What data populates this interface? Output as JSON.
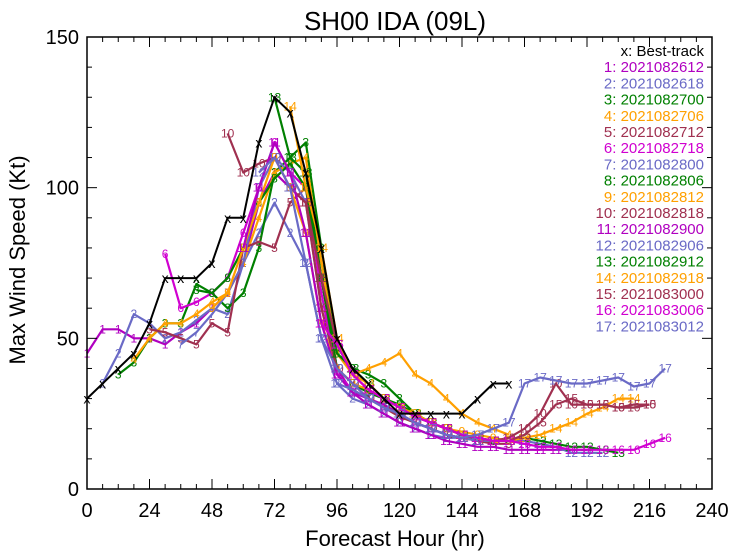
{
  "chart_data": {
    "type": "line",
    "title": "SH00  IDA (09L)",
    "xlabel": "Forecast Hour (hr)",
    "ylabel": "Max Wind Speed (Kt)",
    "xlim": [
      0,
      240
    ],
    "ylim": [
      0,
      150
    ],
    "xticks": [
      0,
      24,
      48,
      72,
      96,
      120,
      144,
      168,
      192,
      216,
      240
    ],
    "yticks": [
      0,
      50,
      100,
      150
    ],
    "legend_position": "top-right",
    "best_track": {
      "label": "x: Best-track",
      "color": "#000000",
      "x": [
        0,
        6,
        12,
        18,
        24,
        30,
        36,
        42,
        48,
        54,
        60,
        66,
        72,
        78,
        84,
        90,
        96,
        102,
        108,
        114,
        120,
        126,
        132,
        138,
        144,
        150,
        156,
        162
      ],
      "y": [
        30,
        35,
        40,
        45,
        55,
        70,
        70,
        70,
        75,
        90,
        90,
        115,
        130,
        125,
        105,
        80,
        50,
        40,
        35,
        30,
        25,
        25,
        25,
        25,
        25,
        30,
        35,
        35
      ]
    },
    "series": [
      {
        "name": "2021082612",
        "marker": "1",
        "color": "#B000C0",
        "x": [
          0,
          6,
          12,
          18,
          24,
          30,
          36,
          42,
          48,
          54,
          60,
          66,
          72,
          78,
          84,
          90,
          96,
          102,
          108,
          114,
          120
        ],
        "y": [
          45,
          53,
          53,
          50,
          50,
          48,
          52,
          55,
          60,
          65,
          75,
          95,
          105,
          100,
          95,
          70,
          40,
          32,
          30,
          28,
          25
        ]
      },
      {
        "name": "2021082618",
        "marker": "2",
        "color": "#6A6AC6",
        "x": [
          6,
          12,
          18,
          24,
          30,
          36,
          42,
          48,
          54,
          60,
          66,
          72,
          78,
          84,
          90,
          96,
          102,
          108,
          114,
          120,
          126,
          132,
          138,
          144
        ],
        "y": [
          35,
          45,
          58,
          55,
          50,
          52,
          56,
          60,
          58,
          75,
          85,
          95,
          85,
          75,
          50,
          35,
          30,
          28,
          25,
          22,
          20,
          18,
          17,
          17
        ]
      },
      {
        "name": "2021082700",
        "marker": "3",
        "color": "#008000",
        "x": [
          12,
          18,
          24,
          30,
          36,
          42,
          48,
          54,
          60,
          66,
          72,
          78,
          84,
          90,
          96,
          102,
          108,
          114,
          120,
          126,
          132,
          138,
          144
        ],
        "y": [
          38,
          42,
          50,
          55,
          55,
          68,
          65,
          60,
          65,
          80,
          105,
          110,
          115,
          80,
          45,
          40,
          38,
          35,
          30,
          25,
          22,
          20,
          18
        ]
      },
      {
        "name": "2021082706",
        "marker": "4",
        "color": "#FFA000",
        "x": [
          18,
          24,
          30,
          36,
          42,
          48,
          54,
          60,
          66,
          72,
          78,
          84,
          90,
          96,
          102,
          108,
          114,
          120,
          126,
          132,
          138,
          144,
          150,
          156,
          162
        ],
        "y": [
          43,
          50,
          55,
          55,
          58,
          62,
          65,
          75,
          90,
          105,
          108,
          110,
          75,
          45,
          38,
          40,
          42,
          45,
          38,
          35,
          30,
          25,
          22,
          20,
          18
        ]
      },
      {
        "name": "2021082712",
        "marker": "5",
        "color": "#A03050",
        "x": [
          24,
          30,
          36,
          42,
          48,
          54,
          60,
          66,
          72,
          78,
          84,
          90,
          96,
          102,
          108,
          114,
          120,
          126,
          132,
          138,
          144,
          150,
          156,
          162
        ],
        "y": [
          53,
          52,
          50,
          48,
          55,
          52,
          80,
          82,
          80,
          95,
          100,
          70,
          40,
          35,
          32,
          30,
          27,
          24,
          22,
          20,
          18,
          16,
          15,
          15
        ]
      },
      {
        "name": "2021082718",
        "marker": "6",
        "color": "#D000D0",
        "x": [
          30,
          36,
          42,
          48,
          54,
          60,
          66,
          72,
          78,
          84,
          90,
          96,
          102,
          108,
          114,
          120,
          126,
          132,
          138,
          144,
          150
        ],
        "y": [
          78,
          60,
          62,
          65,
          70,
          85,
          100,
          115,
          105,
          100,
          65,
          38,
          33,
          30,
          27,
          25,
          22,
          20,
          18,
          17,
          16
        ]
      },
      {
        "name": "2021082800",
        "marker": "7",
        "color": "#6A6AC6",
        "x": [
          36,
          42,
          48,
          54,
          60,
          66,
          72,
          78,
          84,
          90,
          96,
          102,
          108,
          114,
          120,
          126,
          132,
          138,
          144,
          150,
          156
        ],
        "y": [
          48,
          52,
          58,
          65,
          75,
          100,
          110,
          105,
          95,
          60,
          40,
          35,
          32,
          30,
          27,
          24,
          22,
          20,
          18,
          17,
          16
        ]
      },
      {
        "name": "2021082806",
        "marker": "8",
        "color": "#008000",
        "x": [
          42,
          48,
          54,
          60,
          66,
          72,
          78,
          84,
          90,
          96,
          102,
          108,
          114,
          120,
          126,
          132,
          138,
          144,
          150,
          156,
          162
        ],
        "y": [
          66,
          65,
          70,
          80,
          95,
          103,
          108,
          100,
          70,
          40,
          35,
          32,
          30,
          28,
          25,
          22,
          20,
          18,
          17,
          16,
          16
        ]
      },
      {
        "name": "2021082812",
        "marker": "9",
        "color": "#FFA000",
        "x": [
          48,
          54,
          60,
          66,
          72,
          78,
          84,
          90,
          96,
          102,
          108,
          114,
          120,
          126,
          132,
          138,
          144,
          150,
          156,
          162,
          168
        ],
        "y": [
          60,
          65,
          80,
          95,
          110,
          100,
          85,
          55,
          40,
          35,
          33,
          30,
          27,
          25,
          22,
          20,
          19,
          18,
          17,
          16,
          16
        ]
      },
      {
        "name": "2021082818",
        "marker": "10",
        "color": "#A03050",
        "x": [
          54,
          60,
          66,
          72,
          78,
          84,
          90,
          96,
          102,
          108,
          114,
          120,
          126,
          132,
          138,
          144,
          150,
          156,
          162,
          168,
          174,
          180,
          186,
          192,
          198,
          204,
          210,
          216
        ],
        "y": [
          118,
          105,
          108,
          110,
          100,
          95,
          60,
          40,
          35,
          30,
          27,
          24,
          22,
          20,
          18,
          17,
          16,
          16,
          17,
          20,
          25,
          35,
          28,
          28,
          28,
          27,
          27,
          28
        ]
      },
      {
        "name": "2021082900",
        "marker": "11",
        "color": "#B000C0",
        "x": [
          60,
          66,
          72,
          78,
          84,
          90,
          96,
          102,
          108,
          114,
          120,
          126,
          132,
          138,
          144,
          150,
          156,
          162,
          168,
          174,
          180,
          186,
          192
        ],
        "y": [
          80,
          100,
          115,
          105,
          85,
          55,
          38,
          32,
          28,
          25,
          22,
          20,
          18,
          16,
          15,
          14,
          14,
          13,
          13,
          13,
          13,
          13,
          13
        ]
      },
      {
        "name": "2021082906",
        "marker": "12",
        "color": "#6A6AC6",
        "x": [
          66,
          72,
          78,
          84,
          90,
          96,
          102,
          108,
          114,
          120,
          126,
          132,
          138,
          144,
          150,
          156,
          162,
          168,
          174,
          180,
          186,
          192,
          198
        ],
        "y": [
          105,
          110,
          100,
          75,
          50,
          40,
          35,
          30,
          27,
          25,
          22,
          20,
          18,
          17,
          16,
          16,
          16,
          16,
          15,
          14,
          12,
          12,
          12
        ]
      },
      {
        "name": "2021082912",
        "marker": "13",
        "color": "#008000",
        "x": [
          72,
          78,
          84,
          90,
          96,
          102,
          108,
          114,
          120,
          126,
          132,
          138,
          144,
          150,
          156,
          162,
          168,
          174,
          180,
          186,
          192,
          198,
          204
        ],
        "y": [
          130,
          110,
          105,
          70,
          45,
          40,
          35,
          30,
          27,
          25,
          22,
          20,
          18,
          17,
          16,
          16,
          17,
          16,
          15,
          14,
          14,
          13,
          12
        ]
      },
      {
        "name": "2021082918",
        "marker": "14",
        "color": "#FFA000",
        "x": [
          78,
          84,
          90,
          96,
          102,
          108,
          114,
          120,
          126,
          132,
          138,
          144,
          150,
          156,
          162,
          168,
          174,
          180,
          186,
          192,
          198,
          204,
          210
        ],
        "y": [
          127,
          100,
          80,
          50,
          38,
          35,
          30,
          27,
          25,
          22,
          20,
          18,
          17,
          16,
          16,
          17,
          18,
          20,
          22,
          25,
          27,
          30,
          30
        ]
      },
      {
        "name": "2021083000",
        "marker": "15",
        "color": "#A03050",
        "x": [
          84,
          90,
          96,
          102,
          108,
          114,
          120,
          126,
          132,
          138,
          144,
          150,
          156,
          162,
          168,
          174,
          180,
          186,
          192,
          198,
          204,
          210,
          216
        ],
        "y": [
          95,
          70,
          48,
          38,
          33,
          30,
          27,
          24,
          22,
          20,
          18,
          17,
          16,
          16,
          18,
          22,
          28,
          30,
          28,
          28,
          27,
          28,
          28
        ]
      },
      {
        "name": "2021083006",
        "marker": "16",
        "color": "#D000D0",
        "x": [
          90,
          96,
          102,
          108,
          114,
          120,
          126,
          132,
          138,
          144,
          150,
          156,
          162,
          168,
          174,
          180,
          186,
          192,
          198,
          204,
          210,
          216,
          222
        ],
        "y": [
          55,
          48,
          38,
          33,
          30,
          27,
          24,
          22,
          20,
          18,
          17,
          16,
          16,
          15,
          14,
          14,
          13,
          13,
          13,
          13,
          13,
          15,
          17
        ]
      },
      {
        "name": "2021083012",
        "marker": "17",
        "color": "#6A6AC6",
        "x": [
          96,
          102,
          108,
          114,
          120,
          126,
          132,
          138,
          144,
          150,
          156,
          162,
          168,
          174,
          180,
          186,
          192,
          198,
          204,
          210,
          216,
          222
        ],
        "y": [
          35,
          33,
          30,
          27,
          25,
          22,
          20,
          18,
          17,
          18,
          20,
          22,
          35,
          37,
          36,
          35,
          35,
          36,
          37,
          34,
          35,
          40
        ]
      }
    ]
  }
}
